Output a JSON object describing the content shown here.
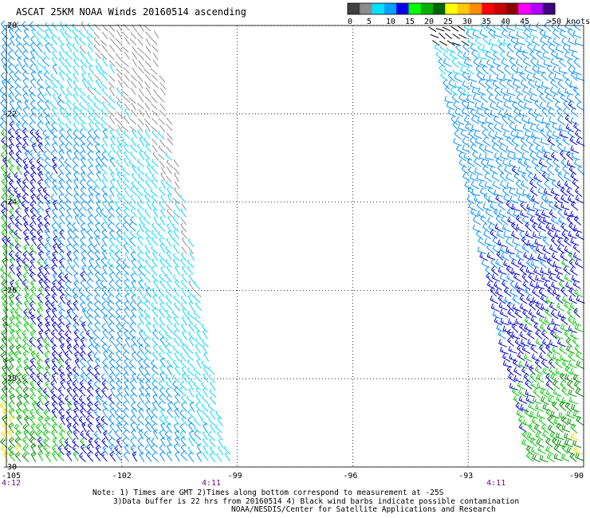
{
  "title": "ASCAT 25KM NOAA Winds 20160514 ascending",
  "legend": {
    "labels": [
      "0",
      "5",
      "10",
      "15",
      "20",
      "25",
      "30",
      "35",
      "40",
      "45",
      ">50 knots"
    ],
    "colors": [
      "#404040",
      "#8c8c8c",
      "#00e0ff",
      "#00a0ff",
      "#0000e8",
      "#00ff00",
      "#00b000",
      "#006400",
      "#ffff00",
      "#ffc800",
      "#ff8c00",
      "#ff0000",
      "#c80000",
      "#8b0000",
      "#ff00ff",
      "#b000ff",
      "#400080"
    ]
  },
  "axes": {
    "lat_labels": [
      "-20",
      "-22",
      "-24",
      "-26",
      "-28",
      "-30"
    ],
    "lon_labels": [
      "-105",
      "-102",
      "-99",
      "-96",
      "-93",
      "-90"
    ],
    "lat_values": [
      -20,
      -22,
      -24,
      -26,
      -28,
      -30
    ],
    "lon_values": [
      -105,
      -102,
      -99,
      -96,
      -93,
      -90
    ]
  },
  "times": [
    {
      "label": "4:12",
      "lon": -105
    },
    {
      "label": "4:11",
      "lon": -99.8
    },
    {
      "label": "4:11",
      "lon": -92.4
    }
  ],
  "notes": [
    "Note: 1) Times are GMT 2)Times along bottom correspond to measurement at -25S",
    "3)Data buffer is 22 hrs from 20160514 4) Black wind barbs indicate possible contamination",
    "NOAA/NESDIS/Center for Satellite Applications and Research"
  ]
}
